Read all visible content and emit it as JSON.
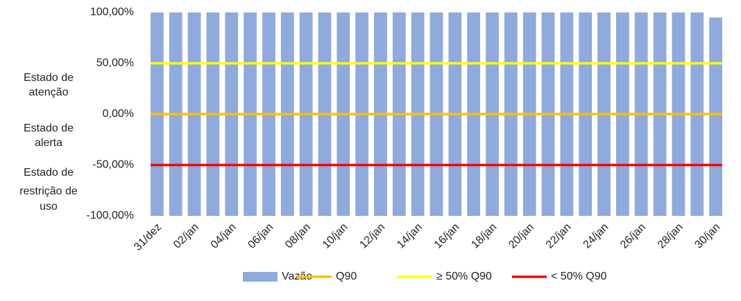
{
  "chart_data": {
    "type": "bar",
    "categories": [
      "31/dez",
      null,
      "02/jan",
      null,
      "04/jan",
      null,
      "06/jan",
      null,
      "08/jan",
      null,
      "10/jan",
      null,
      "12/jan",
      null,
      "14/jan",
      null,
      "16/jan",
      null,
      "18/jan",
      null,
      "20/jan",
      null,
      "22/jan",
      null,
      "24/jan",
      null,
      "26/jan",
      null,
      "28/jan",
      null,
      "30/jan"
    ],
    "series": [
      {
        "name": "Vazão",
        "type": "bar",
        "color": "#8faadc",
        "values": [
          100,
          100,
          100,
          100,
          100,
          100,
          100,
          100,
          100,
          100,
          100,
          100,
          100,
          100,
          100,
          100,
          100,
          100,
          100,
          100,
          100,
          100,
          100,
          100,
          100,
          100,
          100,
          100,
          100,
          100,
          95
        ]
      },
      {
        "name": "Q90",
        "type": "line",
        "color": "#ffc000",
        "values": [
          0,
          0,
          0,
          0,
          0,
          0,
          0,
          0,
          0,
          0,
          0,
          0,
          0,
          0,
          0,
          0,
          0,
          0,
          0,
          0,
          0,
          0,
          0,
          0,
          0,
          0,
          0,
          0,
          0,
          0,
          0
        ]
      },
      {
        "name": "≥ 50% Q90",
        "type": "line",
        "color": "#ffff00",
        "values": [
          50,
          50,
          50,
          50,
          50,
          50,
          50,
          50,
          50,
          50,
          50,
          50,
          50,
          50,
          50,
          50,
          50,
          50,
          50,
          50,
          50,
          50,
          50,
          50,
          50,
          50,
          50,
          50,
          50,
          50,
          50
        ]
      },
      {
        "name": "< 50% Q90",
        "type": "line",
        "color": "#ff0000",
        "values": [
          -50,
          -50,
          -50,
          -50,
          -50,
          -50,
          -50,
          -50,
          -50,
          -50,
          -50,
          -50,
          -50,
          -50,
          -50,
          -50,
          -50,
          -50,
          -50,
          -50,
          -50,
          -50,
          -50,
          -50,
          -50,
          -50,
          -50,
          -50,
          -50,
          -50,
          -50
        ]
      }
    ],
    "ylim": [
      -100,
      100
    ],
    "yticks": [
      {
        "value": -100,
        "label": "-100,00%"
      },
      {
        "value": -50,
        "label": "-50,00%"
      },
      {
        "value": 0,
        "label": "0,00%"
      },
      {
        "value": 50,
        "label": "50,00%"
      },
      {
        "value": 100,
        "label": "100,00%"
      }
    ],
    "annotations": [
      [
        "Estado de",
        "atenção"
      ],
      [
        "Estado de",
        "alerta"
      ],
      [
        "Estado de",
        "restrição de",
        "uso"
      ]
    ],
    "grid": false,
    "legend": "bottom"
  }
}
